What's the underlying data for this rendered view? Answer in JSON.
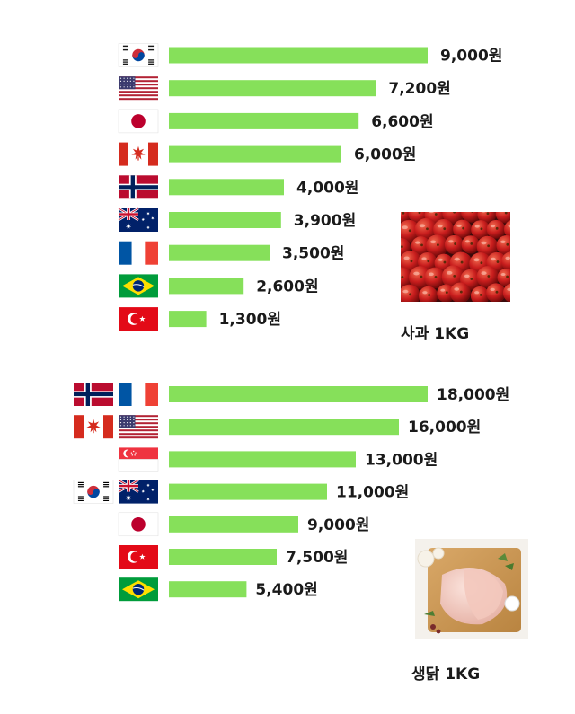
{
  "chart_data": [
    {
      "type": "bar",
      "orientation": "horizontal",
      "title": "사과 1KG",
      "series": [
        {
          "values": [
            9000,
            7200,
            6600,
            6000,
            4000,
            3900,
            3500,
            2600,
            1300
          ]
        }
      ],
      "labels": [
        "9,000원",
        "7,200원",
        "6,600원",
        "6,000원",
        "4,000원",
        "3,900원",
        "3,500원",
        "2,600원",
        "1,300원"
      ],
      "flags": [
        [
          "korea"
        ],
        [
          "usa"
        ],
        [
          "japan"
        ],
        [
          "canada"
        ],
        [
          "norway"
        ],
        [
          "australia"
        ],
        [
          "france"
        ],
        [
          "brazil"
        ],
        [
          "turkey"
        ]
      ],
      "image": "apples-photo",
      "bar_color": "#86e05a"
    },
    {
      "type": "bar",
      "orientation": "horizontal",
      "title": "생닭 1KG",
      "series": [
        {
          "values": [
            18000,
            16000,
            13000,
            11000,
            9000,
            7500,
            5400
          ]
        }
      ],
      "labels": [
        "18,000원",
        "16,000원",
        "13,000원",
        "11,000원",
        "9,000원",
        "7,500원",
        "5,400원"
      ],
      "flags": [
        [
          "norway",
          "france"
        ],
        [
          "canada",
          "usa"
        ],
        [
          "singapore"
        ],
        [
          "korea",
          "australia"
        ],
        [
          "japan"
        ],
        [
          "turkey"
        ],
        [
          "brazil"
        ]
      ],
      "image": "raw-chicken-photo",
      "bar_color": "#86e05a"
    }
  ]
}
